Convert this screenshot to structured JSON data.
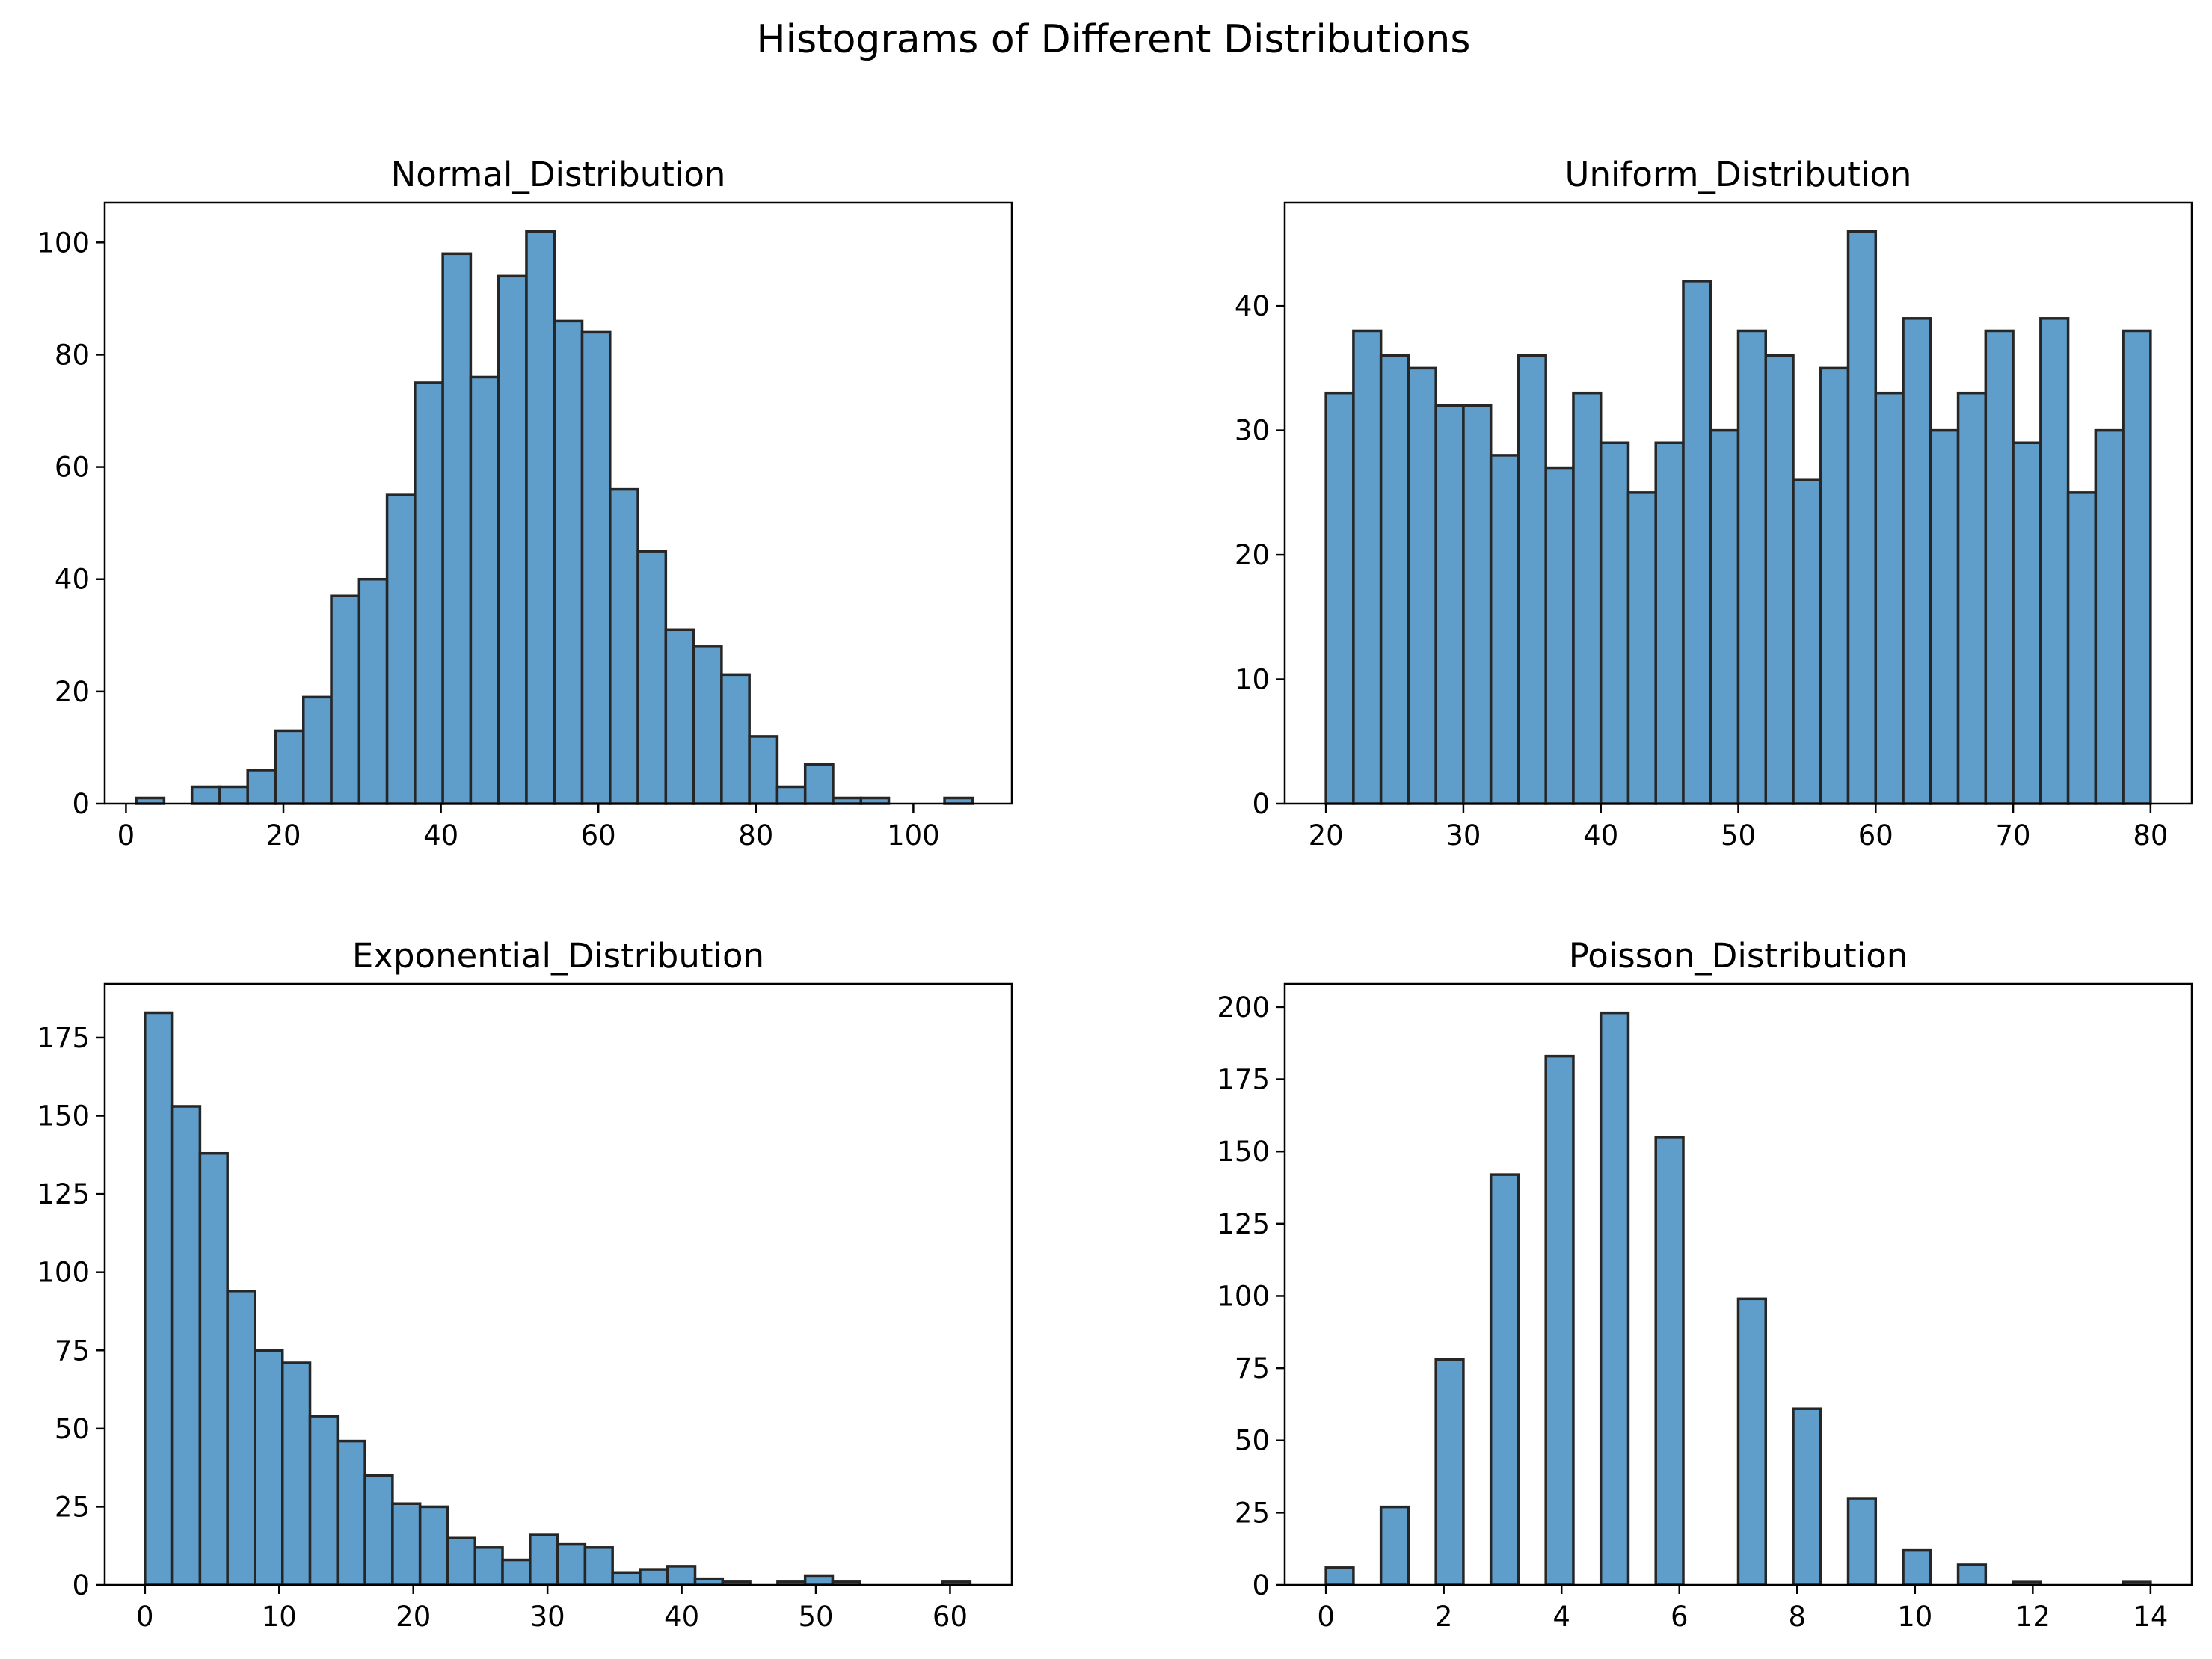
{
  "figure": {
    "title": "Histograms of Different Distributions"
  },
  "chart_data": [
    {
      "type": "bar",
      "title": "Normal_Distribution",
      "xlabel": "",
      "ylabel": "",
      "xlim": [
        -2.7,
        112.5
      ],
      "ylim": [
        0,
        107.1
      ],
      "xticks": [
        0,
        20,
        40,
        60,
        80,
        100
      ],
      "yticks": [
        0,
        20,
        40,
        60,
        80,
        100
      ],
      "bin_edges": [
        1.3,
        4.84,
        8.38,
        11.92,
        15.46,
        19.0,
        22.54,
        26.08,
        29.62,
        33.16,
        36.7,
        40.24,
        43.78,
        47.32,
        50.86,
        54.4,
        57.94,
        61.48,
        65.02,
        68.56,
        72.1,
        75.64,
        79.18,
        82.72,
        86.26,
        89.8,
        93.34,
        96.88,
        100.42,
        103.96,
        107.5
      ],
      "values": [
        1,
        0,
        3,
        3,
        6,
        13,
        19,
        37,
        40,
        55,
        75,
        98,
        76,
        94,
        102,
        86,
        84,
        56,
        45,
        31,
        28,
        23,
        12,
        3,
        7,
        1,
        1,
        0,
        0,
        1
      ],
      "grid": false
    },
    {
      "type": "bar",
      "title": "Uniform_Distribution",
      "xlabel": "",
      "ylabel": "",
      "xlim": [
        17.0,
        83.0
      ],
      "ylim": [
        0,
        48.3
      ],
      "xticks": [
        20,
        30,
        40,
        50,
        60,
        70,
        80
      ],
      "yticks": [
        0,
        10,
        20,
        30,
        40
      ],
      "bin_edges": [
        20,
        22,
        24,
        26,
        28,
        30,
        32,
        34,
        36,
        38,
        40,
        42,
        44,
        46,
        48,
        50,
        52,
        54,
        56,
        58,
        60,
        62,
        64,
        66,
        68,
        70,
        72,
        74,
        76,
        78,
        80
      ],
      "values": [
        33,
        38,
        36,
        35,
        32,
        32,
        28,
        36,
        27,
        33,
        29,
        25,
        29,
        42,
        30,
        38,
        36,
        26,
        35,
        46,
        33,
        39,
        30,
        33,
        38,
        29,
        39,
        25,
        30,
        38
      ],
      "grid": false
    },
    {
      "type": "bar",
      "title": "Exponential_Distribution",
      "xlabel": "",
      "ylabel": "",
      "xlim": [
        -3.0,
        64.6
      ],
      "ylim": [
        0,
        192.2
      ],
      "xticks": [
        0,
        10,
        20,
        30,
        40,
        50,
        60
      ],
      "yticks": [
        0,
        25,
        50,
        75,
        100,
        125,
        150,
        175
      ],
      "bin_edges": [
        0.0,
        2.05,
        4.1,
        6.15,
        8.2,
        10.25,
        12.3,
        14.35,
        16.4,
        18.45,
        20.5,
        22.55,
        24.6,
        26.65,
        28.7,
        30.75,
        32.8,
        34.85,
        36.9,
        38.95,
        41.0,
        43.05,
        45.1,
        47.15,
        49.2,
        51.25,
        53.3,
        55.35,
        57.4,
        59.45,
        61.5
      ],
      "values": [
        183,
        153,
        138,
        94,
        75,
        71,
        54,
        46,
        35,
        26,
        25,
        15,
        12,
        8,
        16,
        13,
        12,
        4,
        5,
        6,
        2,
        1,
        0,
        1,
        3,
        1,
        0,
        0,
        0,
        1
      ],
      "grid": false
    },
    {
      "type": "bar",
      "title": "Poisson_Distribution",
      "xlabel": "",
      "ylabel": "",
      "xlim": [
        -0.7,
        14.7
      ],
      "ylim": [
        0,
        208.0
      ],
      "xticks": [
        0,
        2,
        4,
        6,
        8,
        10,
        12,
        14
      ],
      "yticks": [
        0,
        25,
        50,
        75,
        100,
        125,
        150,
        175,
        200
      ],
      "bin_edges": [
        0.0,
        0.4667,
        0.9333,
        1.4,
        1.8667,
        2.3333,
        2.8,
        3.2667,
        3.7333,
        4.2,
        4.6667,
        5.1333,
        5.6,
        6.0667,
        6.5333,
        7.0,
        7.4667,
        7.9333,
        8.4,
        8.8667,
        9.3333,
        9.8,
        10.2667,
        10.7333,
        11.2,
        11.6667,
        12.1333,
        12.6,
        13.0667,
        13.5333,
        14.0
      ],
      "values": [
        6,
        0,
        27,
        0,
        78,
        0,
        142,
        0,
        183,
        0,
        198,
        0,
        155,
        0,
        0,
        99,
        0,
        61,
        0,
        30,
        0,
        12,
        0,
        7,
        0,
        1,
        0,
        0,
        0,
        1
      ],
      "grid": false
    }
  ]
}
